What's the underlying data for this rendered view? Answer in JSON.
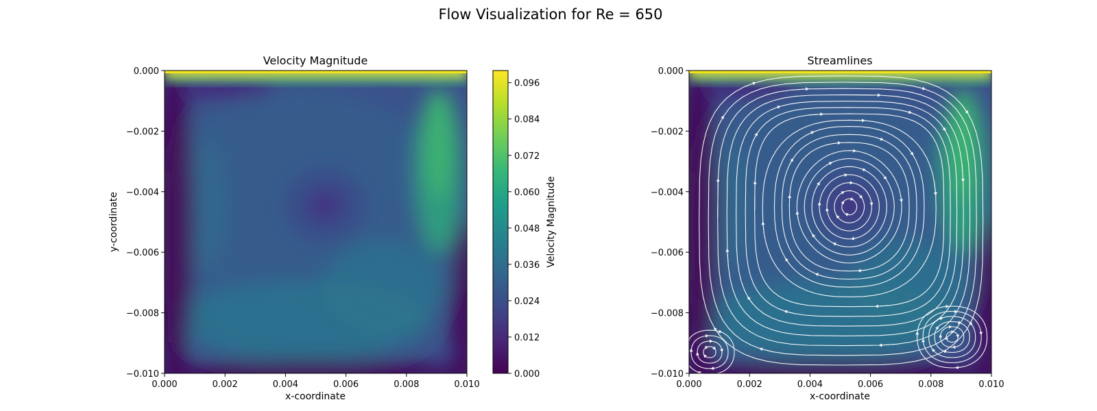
{
  "figure": {
    "suptitle": "Flow Visualization for Re = 650"
  },
  "chart_data": [
    {
      "type": "heatmap",
      "title": "Velocity Magnitude",
      "xlabel": "x-coordinate",
      "ylabel": "y-coordinate",
      "xlim": [
        0.0,
        0.01
      ],
      "ylim": [
        -0.01,
        0.0
      ],
      "xticks": [
        "0.000",
        "0.002",
        "0.004",
        "0.006",
        "0.008",
        "0.010"
      ],
      "yticks": [
        "0.000",
        "−0.002",
        "−0.004",
        "−0.006",
        "−0.008",
        "−0.010"
      ],
      "colormap": "viridis",
      "colorbar": {
        "label": "Velocity Magnitude",
        "range": [
          0.0,
          0.1
        ],
        "ticks": [
          "0.000",
          "0.012",
          "0.024",
          "0.036",
          "0.048",
          "0.060",
          "0.072",
          "0.084",
          "0.096"
        ]
      },
      "features": {
        "vortex_center": [
          0.0053,
          -0.0045
        ],
        "lid_velocity_max": 0.1
      }
    },
    {
      "type": "streamplot",
      "title": "Streamlines",
      "xlabel": "x-coordinate",
      "ylabel": "",
      "xlim": [
        0.0,
        0.01
      ],
      "ylim": [
        -0.01,
        0.0
      ],
      "xticks": [
        "0.000",
        "0.002",
        "0.004",
        "0.006",
        "0.008",
        "0.010"
      ],
      "yticks": [
        "0.000",
        "−0.002",
        "−0.004",
        "−0.006",
        "−0.008",
        "−0.010"
      ],
      "line_color": "#ffffff",
      "features": {
        "primary_vortex_center": [
          0.0053,
          -0.0045
        ],
        "secondary_vortex_bottom_right": [
          0.0087,
          -0.0088
        ],
        "secondary_vortex_bottom_left": [
          0.0005,
          -0.0093
        ]
      }
    }
  ],
  "colors": {
    "viridis": [
      "#440154",
      "#482878",
      "#3e4a89",
      "#31688e",
      "#26828e",
      "#1f9e89",
      "#35b779",
      "#6ece58",
      "#b5de2b",
      "#fde725"
    ]
  }
}
